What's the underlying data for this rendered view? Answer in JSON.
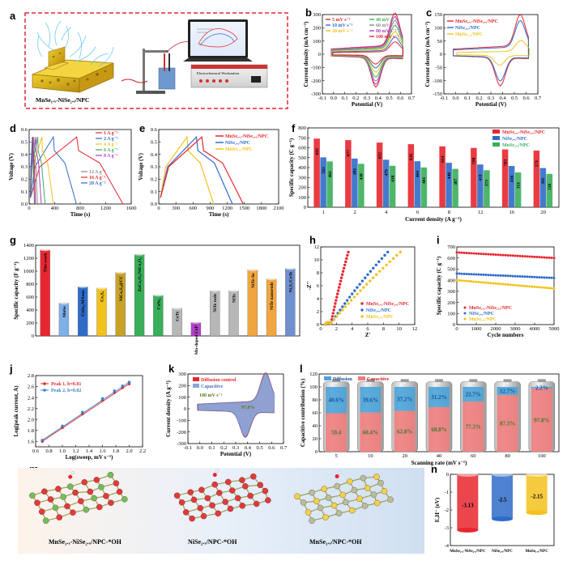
{
  "colors": {
    "mnni": "#e8262f",
    "ni": "#2f6cc9",
    "mn": "#f2c21c",
    "green": "#3aae5a",
    "gray": "#8a8a8a",
    "purple": "#b040c8"
  },
  "panels": {
    "a": "a",
    "b": "b",
    "c": "c",
    "d": "d",
    "e": "e",
    "f": "f",
    "g": "g",
    "h": "h",
    "i": "i",
    "j": "j",
    "k": "k",
    "l": "l",
    "m": "m",
    "n": "n"
  },
  "panel_a": {
    "sample_label": "MnSe₁.ₓ-NiSe₂.ₓ/NPC",
    "screen_label": "Electrochemical Workstation"
  },
  "chart_data": [
    {
      "id": "b",
      "type": "line",
      "xlabel": "Potential (V)",
      "ylabel": "Current density (mA cm⁻²)",
      "xlim": [
        -0.1,
        0.7
      ],
      "ylim": [
        -300,
        300
      ],
      "xticks": [
        "-0.1",
        "0.0",
        "0.1",
        "0.2",
        "0.3",
        "0.4",
        "0.5",
        "0.6",
        "0.7"
      ],
      "yticks": [
        "-300",
        "-200",
        "-100",
        "0",
        "100",
        "200",
        "300"
      ],
      "series": [
        {
          "name": "5 mV s⁻¹",
          "color": "#e8262f",
          "scale": 0.3
        },
        {
          "name": "10 mV s⁻¹",
          "color": "#2f6cc9",
          "scale": 0.42
        },
        {
          "name": "20 mV s⁻¹",
          "color": "#f2c21c",
          "scale": 0.55
        },
        {
          "name": "40 mV s⁻¹",
          "color": "#3aae5a",
          "scale": 0.7
        },
        {
          "name": "60 mV s⁻¹",
          "color": "#8a8a8a",
          "scale": 0.82
        },
        {
          "name": "80 mV s⁻¹",
          "color": "#b040c8",
          "scale": 0.92
        },
        {
          "name": "100 mV s⁻¹",
          "color": "#e8262f",
          "scale": 1.0
        }
      ]
    },
    {
      "id": "c",
      "type": "line",
      "xlabel": "Potential (V)",
      "ylabel": "Current density (mA cm⁻²)",
      "xlim": [
        -0.1,
        0.7
      ],
      "ylim": [
        -150,
        150
      ],
      "xticks": [
        "-0.1",
        "0.0",
        "0.1",
        "0.2",
        "0.3",
        "0.4",
        "0.5",
        "0.6",
        "0.7"
      ],
      "yticks": [
        "-150",
        "-100",
        "-50",
        "0",
        "50",
        "100",
        "150"
      ],
      "series": [
        {
          "name": "MnSe₁.ₓ-NiSe₂.ₓ/NPC",
          "color": "#e8262f",
          "scale": 1.0
        },
        {
          "name": "NiSe₂.ₓ/NPC",
          "color": "#2f6cc9",
          "scale": 0.85
        },
        {
          "name": "MnSe₁.ₓ/NPC",
          "color": "#f2c21c",
          "scale": 0.35
        }
      ]
    },
    {
      "id": "d",
      "type": "line",
      "xlabel": "Time (s)",
      "ylabel": "Voltage (V)",
      "xlim": [
        0,
        1600
      ],
      "ylim": [
        0.0,
        0.6
      ],
      "xticks": [
        "0",
        "400",
        "800",
        "1200",
        "1600"
      ],
      "yticks": [
        "0.0",
        "0.1",
        "0.2",
        "0.3",
        "0.4",
        "0.5",
        "0.6"
      ],
      "series": [
        {
          "name": "1 A g⁻¹",
          "color": "#e8262f",
          "tmax": 1450
        },
        {
          "name": "2 A g⁻¹",
          "color": "#2f6cc9",
          "tmax": 720
        },
        {
          "name": "4 A g⁻¹",
          "color": "#f2c21c",
          "tmax": 360
        },
        {
          "name": "6 A g⁻¹",
          "color": "#3aae5a",
          "tmax": 230
        },
        {
          "name": "8 A g⁻¹",
          "color": "#b040c8",
          "tmax": 170
        },
        {
          "name": "12 A g⁻¹",
          "color": "#8a8a8a",
          "tmax": 110
        },
        {
          "name": "16 A g⁻¹",
          "color": "#e8262f",
          "tmax": 80
        },
        {
          "name": "20 A g⁻¹",
          "color": "#2f6cc9",
          "tmax": 62
        }
      ]
    },
    {
      "id": "e",
      "type": "line",
      "xlabel": "Time (s)",
      "ylabel": "Voltage (V)",
      "xlim": [
        0,
        2100
      ],
      "ylim": [
        0.0,
        0.6
      ],
      "xticks": [
        "0",
        "300",
        "600",
        "900",
        "1200",
        "1500",
        "1800",
        "2100"
      ],
      "yticks": [
        "0.0",
        "0.1",
        "0.2",
        "0.3",
        "0.4",
        "0.5",
        "0.6"
      ],
      "series": [
        {
          "name": "MnSe₁.ₓ-NiSe₂.ₓ/NPC",
          "color": "#e8262f",
          "tmax": 1450
        },
        {
          "name": "NiSe₂.ₓ/NPC",
          "color": "#2f6cc9",
          "tmax": 1260
        },
        {
          "name": "MnSe₁.ₓ/NPC",
          "color": "#f2c21c",
          "tmax": 930
        }
      ]
    },
    {
      "id": "f",
      "type": "bar",
      "xlabel": "Current density (A g⁻¹)",
      "ylabel": "Specific capacity (C g⁻¹)",
      "categories": [
        "1",
        "2",
        "4",
        "6",
        "8",
        "12",
        "16",
        "20"
      ],
      "ylim": [
        0,
        800
      ],
      "yticks": [
        "0",
        "100",
        "200",
        "300",
        "400",
        "500",
        "600",
        "700",
        "800"
      ],
      "series": [
        {
          "name": "MnSe₁.ₓ-NiSe₂.ₓ/NPC",
          "color": "#e8262f",
          "values": [
            692,
            677,
            652,
            636,
            614,
            598,
            583,
            571
          ],
          "labels": [
            "692",
            "677",
            "652",
            "636",
            "614",
            "598",
            "583",
            "571"
          ]
        },
        {
          "name": "NiSe₂.ₓ/NPC",
          "color": "#2f6cc9",
          "values": [
            503,
            491,
            479,
            464,
            448,
            431,
            416,
            395
          ],
          "labels": [
            "503",
            "491",
            "479",
            "464",
            "448",
            "431",
            "416",
            "395"
          ]
        },
        {
          "name": "MnSe₁.ₓ/NPC",
          "color": "#3aae5a",
          "values": [
            462,
            438,
            418,
            401,
            387,
            373,
            351,
            336
          ],
          "labels": [
            "462",
            "438",
            "418",
            "401",
            "387",
            "373",
            "351",
            "336"
          ]
        }
      ]
    },
    {
      "id": "g",
      "type": "bar",
      "ylabel": "Specific capacity (F g⁻¹)",
      "ylim": [
        0,
        1400
      ],
      "yticks": [
        "0",
        "200",
        "400",
        "600",
        "800",
        "1000",
        "1200",
        "1400"
      ],
      "categories": [
        "This work",
        "MnSe",
        "CoSe₂/MXene",
        "Co₃S₄",
        "NiCo₂S₄@CC",
        "ZnCo₂O₄/NiCo₂O₄",
        "CoSe₂",
        "CoTe",
        "Mn-doped CoP",
        "NiTe rods",
        "NiTe",
        "NiTe-Se",
        "NiTe nanorods",
        "Ni₃S₂/CoTe"
      ],
      "values": [
        1330,
        510,
        760,
        740,
        980,
        1260,
        630,
        430,
        210,
        700,
        700,
        1020,
        880,
        1040
      ],
      "colors": [
        "#e8262f",
        "#7fb1e8",
        "#2f6cc9",
        "#f2c21c",
        "#c9a227",
        "#3aae5a",
        "#3aae5a",
        "#b7b7b7",
        "#b040c8",
        "#b7b7b7",
        "#b7b7b7",
        "#f2a640",
        "#f2a640",
        "#6f8fcf"
      ]
    },
    {
      "id": "h",
      "type": "scatter",
      "xlabel": "Z'",
      "ylabel": "-Z''",
      "xlim": [
        0,
        12
      ],
      "ylim": [
        0,
        12
      ],
      "xticks": [
        "0",
        "2",
        "4",
        "6",
        "8",
        "10",
        "12"
      ],
      "yticks": [
        "0",
        "2",
        "4",
        "6",
        "8",
        "10",
        "12"
      ],
      "series": [
        {
          "name": "MnSe₁.ₓ-NiSe₂.ₓ/NPC",
          "color": "#e8262f",
          "k": 6.0
        },
        {
          "name": "NiSe₂.ₓ/NPC",
          "color": "#2f6cc9",
          "k": 1.9
        },
        {
          "name": "MnSe₁.ₓ/NPC",
          "color": "#f2c21c",
          "k": 1.5
        }
      ]
    },
    {
      "id": "i",
      "type": "scatter",
      "xlabel": "Cycle numbers",
      "ylabel": "Specific capacity (C g⁻¹)",
      "xlim": [
        0,
        5000
      ],
      "ylim": [
        0,
        700
      ],
      "xticks": [
        "0",
        "1000",
        "2000",
        "3000",
        "4000",
        "5000"
      ],
      "yticks": [
        "0",
        "100",
        "200",
        "300",
        "400",
        "500",
        "600",
        "700"
      ],
      "series": [
        {
          "name": "MnSe₁.ₓ-NiSe₂.ₓ/NPC",
          "color": "#e8262f",
          "start": 650,
          "end": 600
        },
        {
          "name": "NiSe₂.ₓ/NPC",
          "color": "#2f6cc9",
          "start": 460,
          "end": 420
        },
        {
          "name": "MnSe₁.ₓ/NPC",
          "color": "#f2c21c",
          "start": 400,
          "end": 325
        }
      ]
    },
    {
      "id": "j",
      "type": "scatter",
      "xlabel": "Log(sweep, mV s⁻¹)",
      "ylabel": "Log(peak current, A)",
      "xlim": [
        0.6,
        2.2
      ],
      "ylim": [
        1.5,
        2.8
      ],
      "xticks": [
        "0.6",
        "0.8",
        "1.0",
        "1.2",
        "1.4",
        "1.6",
        "1.8",
        "2.0",
        "2.2"
      ],
      "yticks": [
        "1.6",
        "1.8",
        "2.0",
        "2.2",
        "2.4",
        "2.6",
        "2.8"
      ],
      "series": [
        {
          "name": "Peak 1, b=0.81",
          "color": "#e8262f",
          "x": [
            0.7,
            1.0,
            1.3,
            1.6,
            1.78,
            1.9,
            2.0
          ],
          "y": [
            1.6,
            1.85,
            2.1,
            2.35,
            2.49,
            2.58,
            2.65
          ]
        },
        {
          "name": "Peak 2, b=0.82",
          "color": "#3a86c8",
          "x": [
            0.7,
            1.0,
            1.3,
            1.6,
            1.78,
            1.9,
            2.0
          ],
          "y": [
            1.62,
            1.88,
            2.13,
            2.38,
            2.52,
            2.61,
            2.68
          ]
        }
      ]
    },
    {
      "id": "k",
      "type": "area",
      "xlabel": "Potential (V)",
      "ylabel": "Current density (A g⁻¹)",
      "xlim": [
        -0.1,
        0.7
      ],
      "ylim": [
        -300,
        300
      ],
      "xticks": [
        "-0.1",
        "0.0",
        "0.1",
        "0.2",
        "0.3",
        "0.4",
        "0.5",
        "0.6",
        "0.7"
      ],
      "yticks": [
        "-300",
        "-200",
        "-100",
        "0",
        "100",
        "200",
        "300"
      ],
      "legend": [
        "Diffusion control",
        "Capacitive"
      ],
      "annotations": [
        "100 mV s⁻¹",
        "97.8%"
      ]
    },
    {
      "id": "l",
      "type": "bar",
      "xlabel": "Scanning rate (mV s⁻¹)",
      "ylabel": "Capacitive contribution (%)",
      "categories": [
        "5",
        "10",
        "20",
        "40",
        "60",
        "80",
        "100"
      ],
      "ylim": [
        0,
        120
      ],
      "yticks": [
        "0",
        "20",
        "40",
        "60",
        "80",
        "100",
        "120"
      ],
      "legend": [
        "Diffusion",
        "Capacitive"
      ],
      "series": [
        {
          "name": "Capacitive",
          "color": "#f07d7d",
          "values": [
            59.4,
            60.4,
            62.8,
            68.8,
            77.3,
            87.3,
            97.8
          ],
          "labels": [
            "59.4",
            "60.4%",
            "62.8%",
            "68.8%",
            "77.3%",
            "87.3%",
            "97.8%"
          ]
        },
        {
          "name": "Diffusion",
          "color": "#4aa3d8",
          "values": [
            40.6,
            39.6,
            37.2,
            31.2,
            22.7,
            12.7,
            2.2
          ],
          "labels": [
            "40.6%",
            "39.6%",
            "37.2%",
            "31.2%",
            "22.7%",
            "12.7%",
            "2.2%"
          ]
        }
      ]
    },
    {
      "id": "n",
      "type": "bar",
      "ylabel": "EₒH⁻ (eV)",
      "ylim": [
        0,
        -4
      ],
      "yticks": [
        "0",
        "-1",
        "-2",
        "-3",
        "-4"
      ],
      "categories": [
        "MnSe₁.ₓ-NiSe₂.ₓ/NPC",
        "NiSe₂.ₓ/NPC",
        "MnSe₁.ₓ/NPC"
      ],
      "values": [
        -3.13,
        -2.5,
        -2.15
      ],
      "labels": [
        "-3.13",
        "-2.5",
        "-2.15"
      ],
      "colors": [
        "#e8262f",
        "#2f6cc9",
        "#f2c21c"
      ]
    }
  ],
  "panel_m": {
    "labels": [
      "MnSe₁.ₓ-NiSe₂.ₓ/NPC-*OH",
      "NiSe₂.ₓ/NPC-*OH",
      "MnSe₁.ₓ/NPC-*OH"
    ]
  }
}
